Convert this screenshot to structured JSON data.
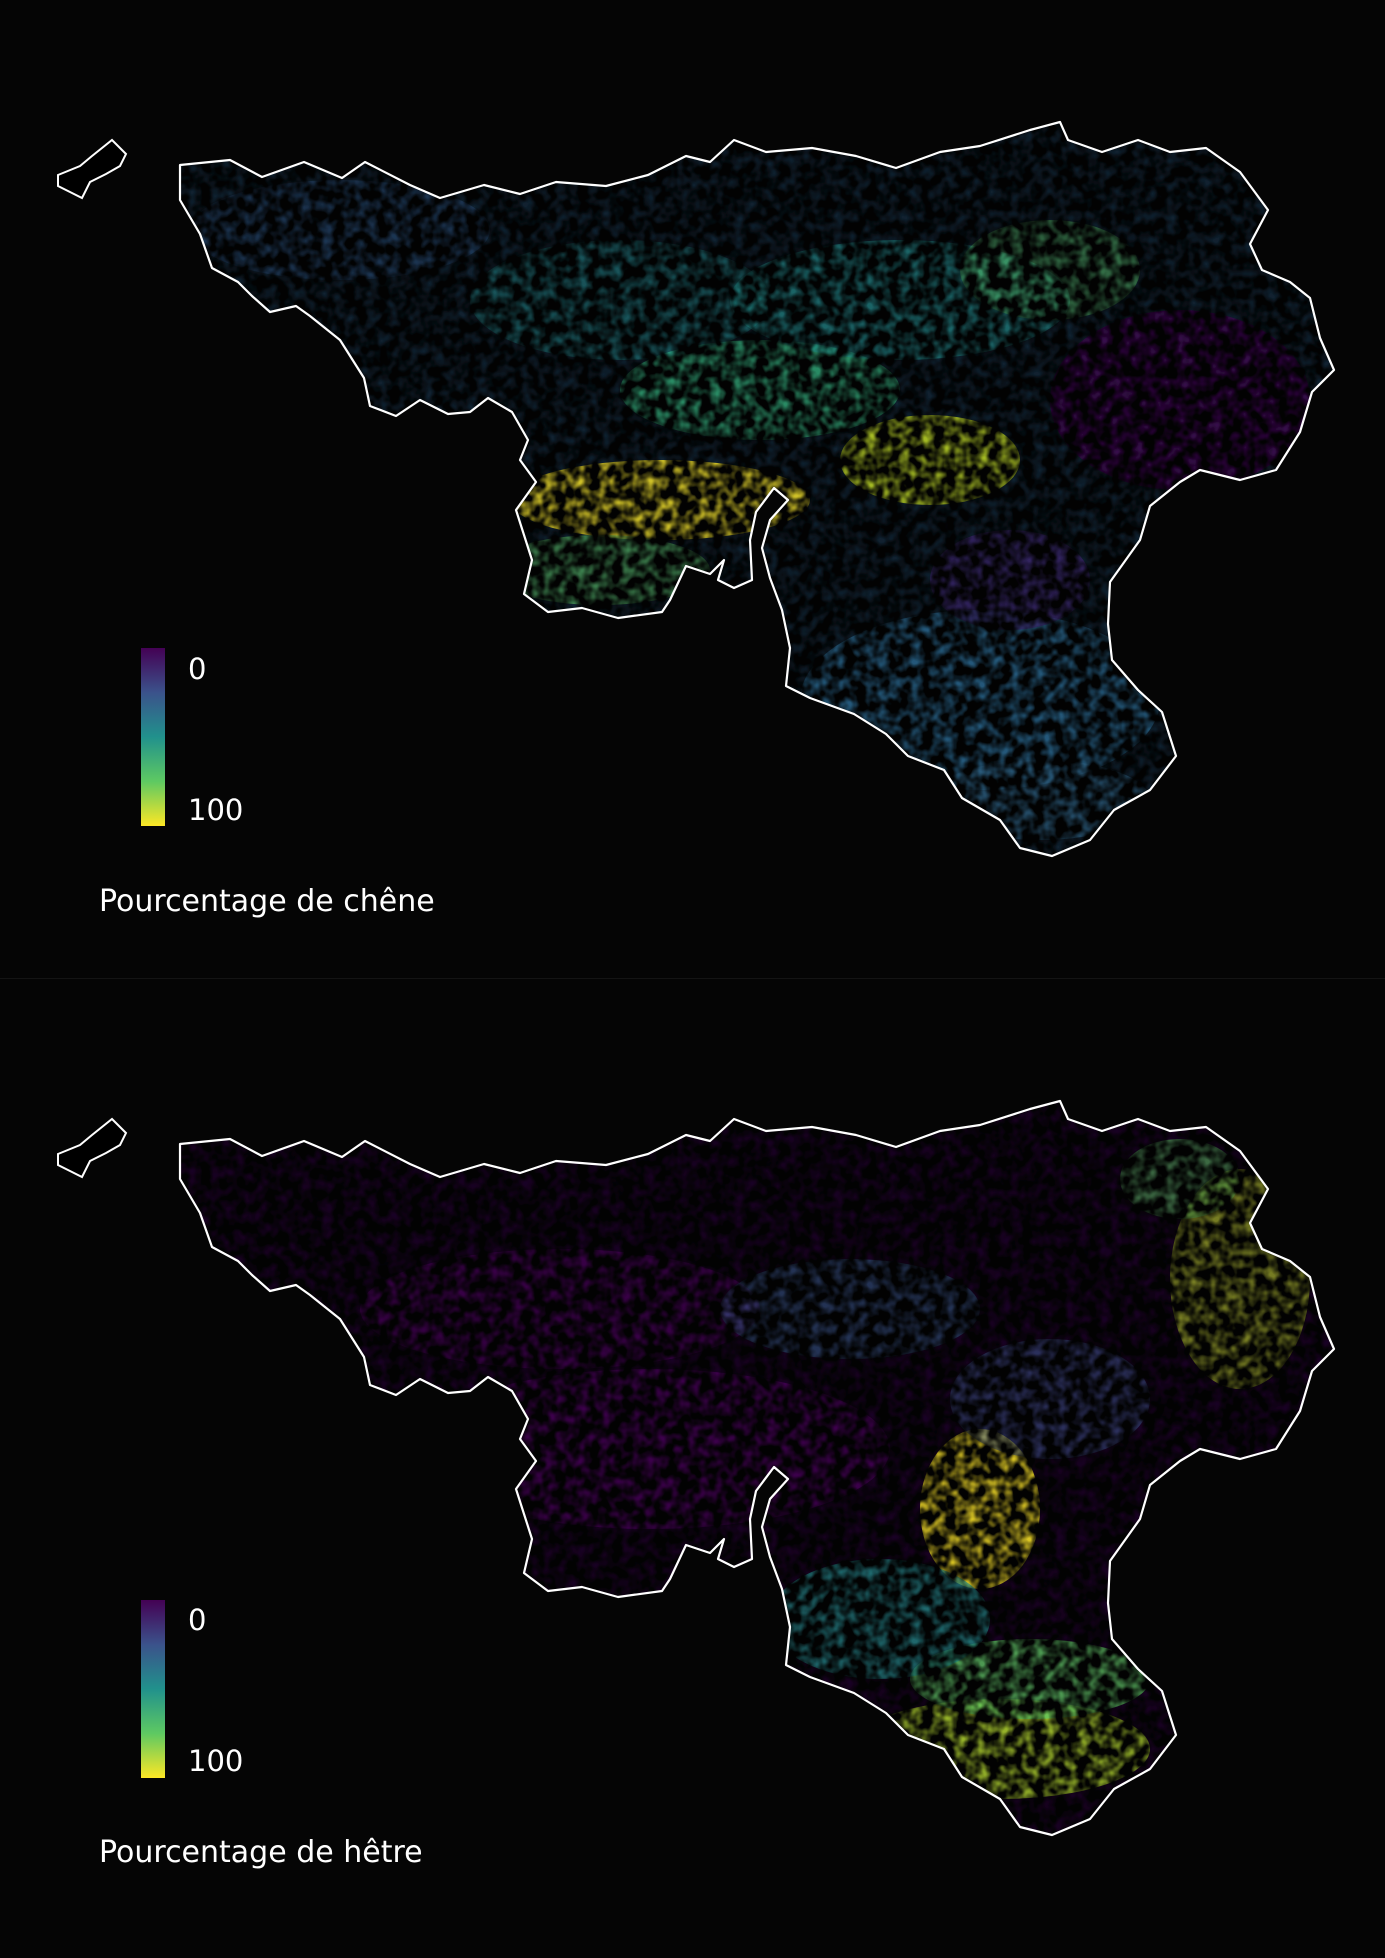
{
  "panels": [
    {
      "legend": {
        "min": "0",
        "max": "100",
        "title": "Pourcentage de chêne"
      },
      "colorscale": [
        "#440154",
        "#3b528b",
        "#21918c",
        "#5ec962",
        "#fde725"
      ],
      "hotspots": [
        {
          "area": "south-west-central",
          "level": 0.9
        },
        {
          "area": "central-east",
          "level": 0.85
        },
        {
          "area": "north-center",
          "level": 0.45
        },
        {
          "area": "south-east",
          "level": 0.35
        },
        {
          "area": "east",
          "level": 0.1
        }
      ]
    },
    {
      "legend": {
        "min": "0",
        "max": "100",
        "title": "Pourcentage de hêtre"
      },
      "colorscale": [
        "#440154",
        "#3b528b",
        "#21918c",
        "#5ec962",
        "#fde725"
      ],
      "hotspots": [
        {
          "area": "south-east",
          "level": 0.9
        },
        {
          "area": "south-central",
          "level": 0.8
        },
        {
          "area": "east",
          "level": 0.6
        },
        {
          "area": "central",
          "level": 0.05
        },
        {
          "area": "west",
          "level": 0.05
        }
      ]
    }
  ]
}
